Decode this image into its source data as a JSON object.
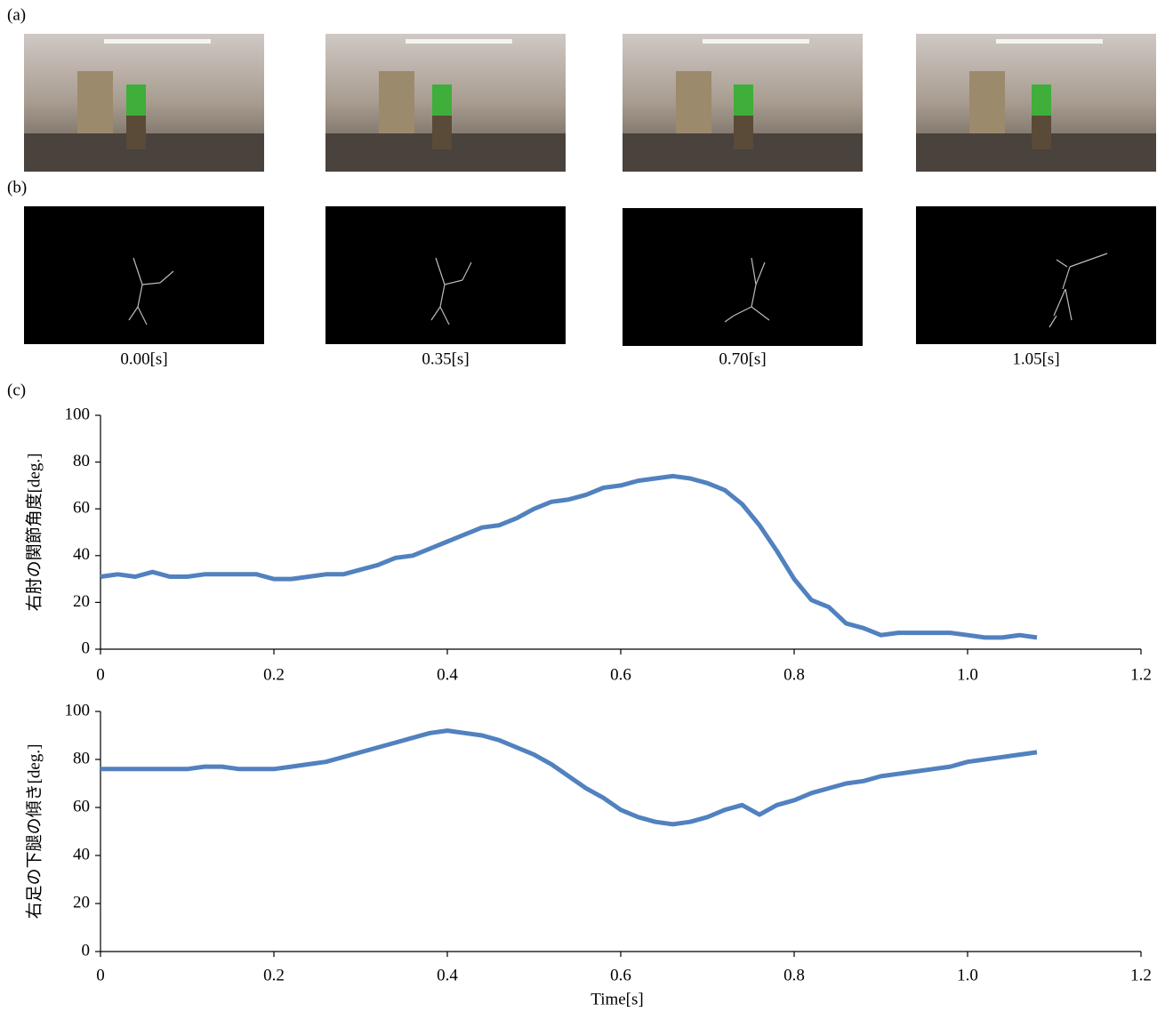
{
  "panels": {
    "a": "(a)",
    "b": "(b)",
    "c": "(c)"
  },
  "frame_times": [
    "0.00[s]",
    "0.35[s]",
    "0.70[s]",
    "1.05[s]"
  ],
  "chart_data": [
    {
      "type": "line",
      "y_label": "右肘の関節角度[deg.]",
      "x": [
        0,
        0.02,
        0.04,
        0.06,
        0.08,
        0.1,
        0.12,
        0.14,
        0.16,
        0.18,
        0.2,
        0.22,
        0.24,
        0.26,
        0.28,
        0.3,
        0.32,
        0.34,
        0.36,
        0.38,
        0.4,
        0.42,
        0.44,
        0.46,
        0.48,
        0.5,
        0.52,
        0.54,
        0.56,
        0.58,
        0.6,
        0.62,
        0.64,
        0.66,
        0.68,
        0.7,
        0.72,
        0.74,
        0.76,
        0.78,
        0.8,
        0.82,
        0.84,
        0.86,
        0.88,
        0.9,
        0.92,
        0.94,
        0.96,
        0.98,
        1,
        1.02,
        1.04,
        1.06,
        1.08
      ],
      "series": [
        {
          "color": "#5181bf",
          "values": [
            31,
            32,
            31,
            33,
            31,
            31,
            32,
            32,
            32,
            32,
            30,
            30,
            31,
            32,
            32,
            34,
            36,
            39,
            40,
            43,
            46,
            49,
            52,
            53,
            56,
            60,
            63,
            64,
            66,
            69,
            70,
            72,
            73,
            74,
            73,
            71,
            68,
            62,
            53,
            42,
            30,
            21,
            18,
            11,
            9,
            6,
            7,
            7,
            7,
            7,
            6,
            5,
            5,
            6,
            5
          ]
        }
      ],
      "xlim": [
        0,
        1.2
      ],
      "ylim": [
        0,
        100
      ],
      "xticks": [
        0,
        0.2,
        0.4,
        0.6,
        0.8,
        {
          "value": 1,
          "label": "1.0"
        },
        1.2
      ],
      "yticks": [
        0,
        20,
        40,
        60,
        80,
        100
      ]
    },
    {
      "type": "line",
      "y_label": "右足の下腿の傾き[deg.]",
      "x_label": "Time[s]",
      "x": [
        0,
        0.02,
        0.04,
        0.06,
        0.08,
        0.1,
        0.12,
        0.14,
        0.16,
        0.18,
        0.2,
        0.22,
        0.24,
        0.26,
        0.28,
        0.3,
        0.32,
        0.34,
        0.36,
        0.38,
        0.4,
        0.42,
        0.44,
        0.46,
        0.48,
        0.5,
        0.52,
        0.54,
        0.56,
        0.58,
        0.6,
        0.62,
        0.64,
        0.66,
        0.68,
        0.7,
        0.72,
        0.74,
        0.76,
        0.78,
        0.8,
        0.82,
        0.84,
        0.86,
        0.88,
        0.9,
        0.92,
        0.94,
        0.96,
        0.98,
        1,
        1.02,
        1.04,
        1.06,
        1.08
      ],
      "series": [
        {
          "color": "#5181bf",
          "values": [
            76,
            76,
            76,
            76,
            76,
            76,
            77,
            77,
            76,
            76,
            76,
            77,
            78,
            79,
            81,
            83,
            85,
            87,
            89,
            91,
            92,
            91,
            90,
            88,
            85,
            82,
            78,
            73,
            68,
            64,
            59,
            56,
            54,
            53,
            54,
            56,
            59,
            61,
            57,
            61,
            63,
            66,
            68,
            70,
            71,
            73,
            74,
            75,
            76,
            77,
            79,
            80,
            81,
            82,
            83
          ]
        }
      ],
      "xlim": [
        0,
        1.2
      ],
      "ylim": [
        0,
        100
      ],
      "xticks": [
        0,
        0.2,
        0.4,
        0.6,
        0.8,
        {
          "value": 1,
          "label": "1.0"
        },
        1.2
      ],
      "yticks": [
        0,
        20,
        40,
        60,
        80,
        100
      ]
    }
  ]
}
